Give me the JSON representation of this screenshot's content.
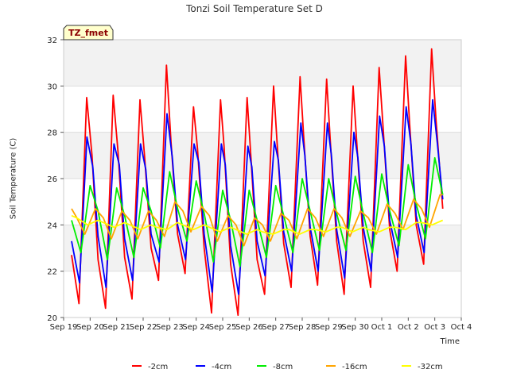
{
  "chart_data": {
    "type": "line",
    "title": "Tonzi Soil Temperature Set D",
    "xlabel": "Time",
    "ylabel": "Soil Temperature (C)",
    "badge": "TZ_fmet",
    "ylim": [
      20,
      32
    ],
    "yticks": [
      20,
      22,
      24,
      26,
      28,
      30,
      32
    ],
    "xlim": [
      0,
      15
    ],
    "xticks": [
      {
        "value": 0,
        "label": "Sep 19"
      },
      {
        "value": 1,
        "label": "Sep 20"
      },
      {
        "value": 2,
        "label": "Sep 21"
      },
      {
        "value": 3,
        "label": "Sep 22"
      },
      {
        "value": 4,
        "label": "Sep 23"
      },
      {
        "value": 5,
        "label": "Sep 24"
      },
      {
        "value": 6,
        "label": "Sep 25"
      },
      {
        "value": 7,
        "label": "Sep 26"
      },
      {
        "value": 8,
        "label": "Sep 27"
      },
      {
        "value": 9,
        "label": "Sep 28"
      },
      {
        "value": 10,
        "label": "Sep 29"
      },
      {
        "value": 11,
        "label": "Sep 30"
      },
      {
        "value": 12,
        "label": "Oct 1"
      },
      {
        "value": 13,
        "label": "Oct 2"
      },
      {
        "value": 14,
        "label": "Oct 3"
      },
      {
        "value": 15,
        "label": "Oct 4"
      }
    ],
    "grid": true,
    "legend_position": "bottom",
    "series": [
      {
        "name": "-2cm",
        "color": "#ff0000",
        "x": [
          0.3,
          0.58,
          0.87,
          1.07,
          1.3,
          1.58,
          1.87,
          2.05,
          2.3,
          2.58,
          2.88,
          3.05,
          3.3,
          3.58,
          3.88,
          4.05,
          4.3,
          4.58,
          4.9,
          5.05,
          5.3,
          5.58,
          5.92,
          6.05,
          6.3,
          6.58,
          6.92,
          7.05,
          7.3,
          7.58,
          7.92,
          8.05,
          8.3,
          8.58,
          8.92,
          9.05,
          9.3,
          9.58,
          9.92,
          10.05,
          10.3,
          10.58,
          10.92,
          11.05,
          11.3,
          11.58,
          11.9,
          12.05,
          12.3,
          12.58,
          12.9,
          13.05,
          13.3,
          13.58,
          13.88,
          14.05,
          14.3
        ],
        "values": [
          22.7,
          20.6,
          29.5,
          27.0,
          22.5,
          20.4,
          29.6,
          27.2,
          22.6,
          20.8,
          29.4,
          27.0,
          23.0,
          21.6,
          30.9,
          27.6,
          23.6,
          21.9,
          29.1,
          27.3,
          23.0,
          20.2,
          29.4,
          27.4,
          22.3,
          20.1,
          29.5,
          27.2,
          22.5,
          21.0,
          30.0,
          27.6,
          23.2,
          21.3,
          30.4,
          27.9,
          23.5,
          21.4,
          30.3,
          27.8,
          23.3,
          21.0,
          30.0,
          27.7,
          23.3,
          21.3,
          30.8,
          28.2,
          23.8,
          22.0,
          31.3,
          28.4,
          24.0,
          22.3,
          31.6,
          28.5,
          24.7
        ]
      },
      {
        "name": "-4cm",
        "color": "#0000ff",
        "x": [
          0.3,
          0.6,
          0.88,
          1.1,
          1.3,
          1.6,
          1.9,
          2.1,
          2.3,
          2.6,
          2.9,
          3.1,
          3.3,
          3.6,
          3.9,
          4.1,
          4.3,
          4.6,
          4.92,
          5.1,
          5.3,
          5.6,
          5.95,
          6.1,
          6.3,
          6.6,
          6.95,
          7.1,
          7.3,
          7.6,
          7.95,
          8.1,
          8.3,
          8.6,
          8.95,
          9.1,
          9.3,
          9.6,
          9.95,
          10.1,
          10.3,
          10.6,
          10.95,
          11.1,
          11.3,
          11.6,
          11.92,
          12.1,
          12.3,
          12.6,
          12.92,
          13.1,
          13.3,
          13.6,
          13.92,
          14.1,
          14.3
        ],
        "values": [
          23.3,
          21.5,
          27.8,
          26.5,
          23.5,
          21.3,
          27.5,
          26.6,
          23.4,
          21.6,
          27.5,
          26.4,
          23.6,
          22.4,
          28.8,
          26.9,
          24.0,
          22.5,
          27.5,
          26.7,
          23.6,
          21.1,
          27.5,
          26.6,
          23.1,
          21.0,
          27.4,
          26.5,
          23.3,
          21.8,
          27.6,
          26.8,
          23.7,
          22.0,
          28.4,
          27.0,
          23.9,
          22.0,
          28.4,
          27.0,
          23.8,
          21.7,
          28.0,
          26.9,
          23.9,
          22.0,
          28.7,
          27.4,
          24.2,
          22.6,
          29.1,
          27.5,
          24.4,
          22.8,
          29.4,
          27.5,
          25.1
        ]
      },
      {
        "name": "-8cm",
        "color": "#00ee00",
        "x": [
          0.3,
          0.65,
          1.0,
          1.3,
          1.65,
          2.0,
          2.3,
          2.65,
          3.0,
          3.3,
          3.65,
          4.0,
          4.3,
          4.65,
          5.0,
          5.3,
          5.65,
          6.0,
          6.3,
          6.65,
          7.0,
          7.3,
          7.65,
          8.0,
          8.3,
          8.65,
          9.0,
          9.3,
          9.65,
          10.0,
          10.3,
          10.65,
          11.0,
          11.3,
          11.65,
          12.0,
          12.3,
          12.65,
          13.0,
          13.3,
          13.65,
          14.0,
          14.3
        ],
        "values": [
          24.2,
          22.8,
          25.7,
          24.6,
          22.5,
          25.6,
          24.4,
          22.6,
          25.6,
          24.6,
          23.0,
          26.3,
          24.7,
          23.3,
          25.9,
          24.5,
          22.4,
          25.5,
          24.2,
          22.2,
          25.5,
          24.2,
          22.6,
          25.7,
          24.4,
          22.8,
          26.0,
          24.6,
          22.9,
          26.0,
          24.5,
          22.9,
          26.1,
          24.5,
          22.8,
          26.2,
          24.6,
          23.1,
          26.6,
          24.9,
          23.4,
          26.9,
          25.3
        ]
      },
      {
        "name": "-16cm",
        "color": "#ffa500",
        "x": [
          0.3,
          0.5,
          0.8,
          1.2,
          1.5,
          1.8,
          2.2,
          2.5,
          2.8,
          3.2,
          3.5,
          3.8,
          4.2,
          4.5,
          4.8,
          5.2,
          5.5,
          5.8,
          6.2,
          6.5,
          6.8,
          7.2,
          7.5,
          7.8,
          8.2,
          8.5,
          8.8,
          9.2,
          9.5,
          9.8,
          10.2,
          10.5,
          10.8,
          11.2,
          11.5,
          11.8,
          12.2,
          12.5,
          12.8,
          13.2,
          13.5,
          13.8,
          14.2,
          14.3
        ],
        "values": [
          24.7,
          24.3,
          23.6,
          24.7,
          24.3,
          23.4,
          24.6,
          24.2,
          23.4,
          24.6,
          24.2,
          23.5,
          25.0,
          24.6,
          23.7,
          24.8,
          24.4,
          23.3,
          24.4,
          24.0,
          23.1,
          24.3,
          24.0,
          23.3,
          24.5,
          24.2,
          23.4,
          24.7,
          24.3,
          23.5,
          24.7,
          24.3,
          23.5,
          24.6,
          24.3,
          23.6,
          24.9,
          24.5,
          23.8,
          25.1,
          24.7,
          23.9,
          25.3,
          25.3
        ]
      },
      {
        "name": "-32cm",
        "color": "#ffff00",
        "x": [
          0.3,
          0.5,
          0.9,
          1.3,
          1.5,
          1.9,
          2.3,
          2.5,
          2.9,
          3.3,
          3.5,
          3.9,
          4.3,
          4.5,
          4.9,
          5.3,
          5.5,
          5.9,
          6.3,
          6.5,
          6.9,
          7.3,
          7.5,
          7.9,
          8.3,
          8.5,
          8.9,
          9.3,
          9.5,
          9.9,
          10.3,
          10.5,
          10.9,
          11.3,
          11.5,
          11.9,
          12.3,
          12.5,
          12.9,
          13.3,
          13.5,
          13.9,
          14.3
        ],
        "values": [
          24.4,
          24.3,
          24.0,
          24.2,
          24.1,
          23.9,
          24.1,
          24.0,
          23.8,
          24.0,
          23.9,
          23.8,
          24.1,
          24.0,
          23.8,
          24.0,
          23.9,
          23.7,
          23.9,
          23.8,
          23.6,
          23.8,
          23.7,
          23.6,
          23.8,
          23.8,
          23.6,
          23.8,
          23.8,
          23.7,
          23.9,
          23.9,
          23.7,
          23.9,
          23.8,
          23.7,
          23.9,
          23.9,
          23.8,
          24.1,
          24.1,
          24.0,
          24.2
        ]
      }
    ]
  }
}
